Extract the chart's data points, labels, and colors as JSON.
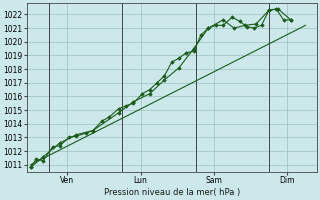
{
  "background_color": "#cce8ea",
  "grid_color": "#9fbfbf",
  "line_color": "#1a5c1a",
  "marker_color": "#1a5c1a",
  "xlabel": "Pression niveau de la mer( hPa )",
  "ylim": [
    1010.5,
    1022.8
  ],
  "yticks": [
    1011,
    1012,
    1013,
    1014,
    1015,
    1016,
    1017,
    1018,
    1019,
    1020,
    1021,
    1022
  ],
  "day_labels": [
    "Ven",
    "Lun",
    "Sam",
    "Dim"
  ],
  "day_positions": [
    1.0,
    3.0,
    5.0,
    7.0
  ],
  "vline_positions": [
    0.5,
    2.5,
    4.5,
    6.5
  ],
  "xlim": [
    -0.1,
    7.8
  ],
  "series1_x": [
    0.0,
    0.15,
    0.35,
    0.6,
    0.8,
    1.05,
    1.25,
    1.5,
    1.7,
    1.95,
    2.15,
    2.4,
    2.6,
    2.8,
    3.05,
    3.25,
    3.45,
    3.65,
    3.85,
    4.05,
    4.25,
    4.45,
    4.65,
    4.85,
    5.05,
    5.25,
    5.5,
    5.7,
    5.9,
    6.1,
    6.3,
    6.5,
    6.7,
    6.9,
    7.1
  ],
  "series1_y": [
    1010.8,
    1011.4,
    1011.3,
    1012.3,
    1012.4,
    1013.0,
    1013.1,
    1013.3,
    1013.5,
    1014.2,
    1014.5,
    1015.1,
    1015.3,
    1015.5,
    1016.2,
    1016.5,
    1017.0,
    1017.5,
    1018.5,
    1018.8,
    1019.2,
    1019.3,
    1020.5,
    1021.0,
    1021.2,
    1021.2,
    1021.8,
    1021.5,
    1021.1,
    1021.0,
    1021.2,
    1022.3,
    1022.4,
    1021.6,
    1021.6
  ],
  "series2_x": [
    0.0,
    0.35,
    0.8,
    1.25,
    1.7,
    2.4,
    2.8,
    3.25,
    3.65,
    4.05,
    4.45,
    4.85,
    5.25,
    5.55,
    5.85,
    6.15,
    6.5,
    6.75,
    7.1
  ],
  "series2_y": [
    1010.8,
    1011.6,
    1012.6,
    1013.2,
    1013.5,
    1014.8,
    1015.6,
    1016.2,
    1017.2,
    1018.1,
    1019.5,
    1021.0,
    1021.6,
    1021.0,
    1021.2,
    1021.3,
    1022.3,
    1022.4,
    1021.6
  ],
  "trend_x": [
    0.0,
    7.5
  ],
  "trend_y": [
    1011.0,
    1021.2
  ]
}
